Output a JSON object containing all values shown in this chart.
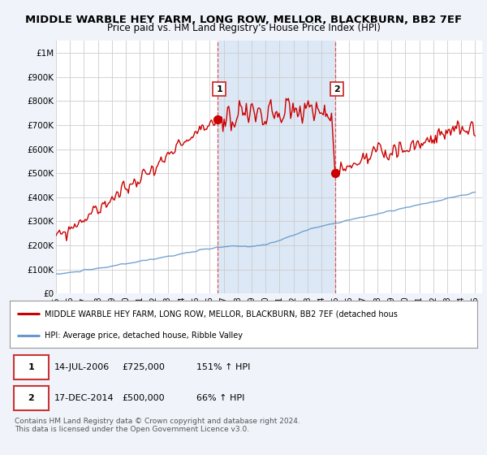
{
  "title": "MIDDLE WARBLE HEY FARM, LONG ROW, MELLOR, BLACKBURN, BB2 7EF",
  "subtitle": "Price paid vs. HM Land Registry's House Price Index (HPI)",
  "title_fontsize": 9.5,
  "subtitle_fontsize": 8.5,
  "ylim": [
    0,
    1050000
  ],
  "yticks": [
    0,
    100000,
    200000,
    300000,
    400000,
    500000,
    600000,
    700000,
    800000,
    900000,
    1000000
  ],
  "ytick_labels": [
    "£0",
    "£100K",
    "£200K",
    "£300K",
    "£400K",
    "£500K",
    "£600K",
    "£700K",
    "£800K",
    "£900K",
    "£1M"
  ],
  "red_line_color": "#cc0000",
  "blue_line_color": "#6699cc",
  "point1_x": 2006.54,
  "point1_y": 725000,
  "point2_x": 2014.96,
  "point2_y": 500000,
  "legend_red_text": "MIDDLE WARBLE HEY FARM, LONG ROW, MELLOR, BLACKBURN, BB2 7EF (detached hous",
  "legend_blue_text": "HPI: Average price, detached house, Ribble Valley",
  "table_row1": [
    "1",
    "14-JUL-2006",
    "£725,000",
    "151% ↑ HPI"
  ],
  "table_row2": [
    "2",
    "17-DEC-2014",
    "£500,000",
    "66% ↑ HPI"
  ],
  "footnote": "Contains HM Land Registry data © Crown copyright and database right 2024.\nThis data is licensed under the Open Government Licence v3.0.",
  "bg_color": "#f0f4fa",
  "plot_bg_color": "#ffffff",
  "highlight_bg_color": "#dce8f5",
  "xmin": 1995,
  "xmax": 2025.5
}
